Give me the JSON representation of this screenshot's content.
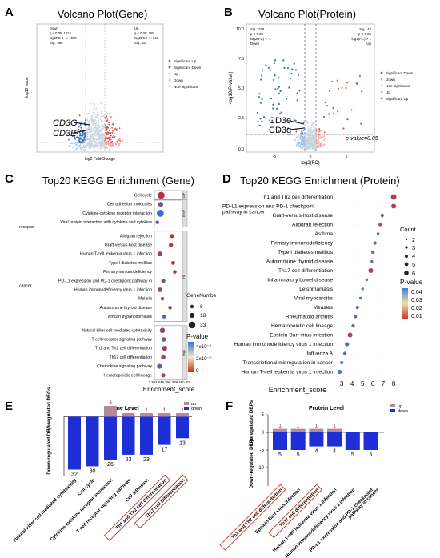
{
  "panels": {
    "a": {
      "letter": "A",
      "title": "Volcano Plot(Gene)",
      "ylabel": "-log10 value",
      "xlabel": "log2 FoldChange",
      "down_stats": [
        "Down",
        "q < 0.05: 1016",
        "log2FC < -1: 1086",
        "Sig.: 468"
      ],
      "up_stats": [
        "Up",
        "q < 0.05: 358",
        "log2FC > 1: 943",
        "Sig.: 52"
      ],
      "legend": [
        "Significant Up",
        "Significant Down",
        "Up",
        "Down",
        "Non-significant"
      ],
      "annot1": "CD3G",
      "annot2": "CD3E"
    },
    "b": {
      "letter": "B",
      "title": "Volcano Plot(Protein)",
      "ylabel": "-log10(P-value)",
      "xlabel": "log2(FC)",
      "yticks": [
        "10.0",
        "7.5",
        "5.0",
        "2.5",
        "0.0"
      ],
      "xticks": [
        "-5",
        "0",
        "5"
      ],
      "down_stats": [
        "Sig.: 108",
        "p < 0.05",
        "log2(FC) < -1",
        "Down"
      ],
      "up_stats": [
        "Sig.: 42",
        "p < 0.05",
        "log2(FC) > 1",
        "Up"
      ],
      "legend": [
        "Significant Down",
        "Down",
        "Non-significant",
        "Up",
        "Significant Up"
      ],
      "annot1": "CD3e",
      "annot2": "CD3g",
      "pline_label": "p-value=0.05"
    },
    "c": {
      "letter": "C",
      "title": "Top20 KEGG Enrichment (Gene)",
      "xlabel": "Enrichment_score",
      "xticks": "2.303.646.396.328.480.00",
      "legend_size_title": "GeneNumbe",
      "legend_sizes": [
        "8",
        "18",
        "33"
      ],
      "legend_color_title": "P-value",
      "legend_colors": [
        "4x10⁻⁶",
        "2x10⁻⁶",
        "0"
      ],
      "groups": [
        "CeP",
        "EnvIP",
        "HD",
        "OrgS"
      ],
      "terms": [
        "Cell cycle",
        "Cell adhesion molecules",
        "Cytokine-cytokine receptor interaction",
        "Viral protein interaction with cytokine and cytokine receptor",
        "Allograft rejection",
        "Graft-versus-host disease",
        "Human T-cell leukemia virus 1 infection",
        "Type I diabetes mellitus",
        "Primary immunodeficiency",
        "PD-L1 expression and PD-1 checkpoint pathway in cancer",
        "Human immunodeficiency virus 1 infection",
        "Malaria",
        "Autoimmune thyroid disease",
        "African trypanosomiasis",
        "Natural killer cell mediated cytotoxicity",
        "T cell receptor signaling pathway",
        "Th1 and Th2 cell differentiation",
        "Th17 cell differentiation",
        "Chemokine signaling pathway",
        "Hematopoietic cell lineage"
      ]
    },
    "d": {
      "letter": "D",
      "title": "Top20 KEGG Enrichment (Protein)",
      "xlabel": "Enrichment_score",
      "xticks": [
        "3",
        "4",
        "5",
        "6",
        "7",
        "8"
      ],
      "legend_size_title": "Count",
      "legend_sizes": [
        "2",
        "3",
        "4",
        "5",
        "6"
      ],
      "legend_color_title": "P-value",
      "legend_colors": [
        "0.04",
        "0.03",
        "0.02",
        "0.01"
      ],
      "terms": [
        "Th1 and Th2 cell differentiation",
        "PD-L1 expression and PD-1 checkpoint pathway in cancer",
        "Graft-versus-host disease",
        "Allograft rejection",
        "Asthma",
        "Primary immunodeficiency",
        "Type I diabetes mellitus",
        "Autoimmune thyroid disease",
        "Th17 cell differentiation",
        "Inflammatory bowel disease",
        "Leishmaniasis",
        "Viral myocarditis",
        "Measles",
        "Rheumatoid arthritis",
        "Hematopoietic cell lineage",
        "Epstein-Barr virus infection",
        "Human immunodeficiency virus 1 infection",
        "Influenza A",
        "Transcriptional misregulation in cancer",
        "Human T-cell leukemia virus 1 infection"
      ]
    },
    "e": {
      "letter": "E",
      "title": "Gene Level",
      "ylabel_up": "Up-regulated DEGs",
      "ylabel_down": "Down-regulated DEGs",
      "legend": [
        "up",
        "down"
      ],
      "categories": [
        "Natural killer cell mediated cytotoxicity",
        "Cell cycle",
        "Cytokine-cytokine receptor interaction",
        "T cell receptor signaling pathway",
        "Cell adhesion",
        "Th1 and Th2 cell differentiation",
        "Th17 cell Differentiation"
      ],
      "up_labels": [
        "",
        "",
        "3",
        "1",
        "1",
        "1",
        "1"
      ],
      "down_labels": [
        "32",
        "30",
        "26",
        "23",
        "23",
        "17",
        "13"
      ]
    },
    "f": {
      "letter": "F",
      "title": "Protein Level",
      "ylabel_up": "Up-regulated DEPs",
      "ylabel_down": "Down-regulated DEPs",
      "yticks": [
        "5",
        "0",
        "-5",
        "-10"
      ],
      "legend": [
        "up",
        "down"
      ],
      "categories": [
        "Th1 and Th2 cell differentiation",
        "Epstein-Barr virus infection",
        "Th17 cell differentiation",
        "Human T-cell leukemia virus 1 infection",
        "Human immunodeficiency virus 1 infection",
        "PD-L1 expression and PD-1 checkpoint pathway in cancer"
      ],
      "up_labels": [
        "1",
        "1",
        "1",
        "1",
        "",
        ""
      ],
      "down_labels": [
        "5",
        "5",
        "4",
        "4",
        "5",
        "5"
      ]
    }
  },
  "colors": {
    "sig_up": "#d9534f",
    "sig_down": "#3b6fb6",
    "up": "#f2a7a3",
    "down": "#9fc2e8",
    "ns": "#c9d3e0",
    "bar_up": "#b58a9a",
    "bar_down": "#1f2fd6",
    "highlight": "#c0392b"
  },
  "chart_data": [
    {
      "type": "scatter",
      "title": "Volcano Plot(Gene)",
      "xlabel": "log2 FoldChange",
      "ylabel": "-log10 value",
      "series": [
        {
          "name": "Significant Up",
          "count": 52
        },
        {
          "name": "Significant Down",
          "count": 468
        }
      ]
    },
    {
      "type": "scatter",
      "title": "Volcano Plot(Protein)",
      "xlabel": "log2(FC)",
      "ylabel": "-log10(P-value)",
      "ylim": [
        0,
        10.5
      ],
      "series": [
        {
          "name": "Significant Down",
          "count": 108
        },
        {
          "name": "Significant Up",
          "count": 42
        }
      ]
    },
    {
      "type": "scatter",
      "title": "Top20 KEGG Enrichment (Gene)",
      "xlabel": "Enrichment_score",
      "categories": [
        "Cell cycle",
        "Cell adhesion molecules",
        "Cytokine-cytokine receptor interaction",
        "Viral protein interaction with cytokine and cytokine receptor",
        "Allograft rejection",
        "Graft-versus-host disease",
        "Human T-cell leukemia virus 1 infection",
        "Type I diabetes mellitus",
        "Primary immunodeficiency",
        "PD-L1 expression and PD-1 checkpoint pathway in cancer",
        "Human immunodeficiency virus 1 infection",
        "Malaria",
        "Autoimmune thyroid disease",
        "African trypanosomiasis",
        "Natural killer cell mediated cytotoxicity",
        "T cell receptor signaling pathway",
        "Th1 and Th2 cell differentiation",
        "Th17 cell differentiation",
        "Chemokine signaling pathway",
        "Hematopoietic cell lineage"
      ],
      "values": [
        3.7,
        3.6,
        3.5,
        2.8,
        6.2,
        6.0,
        3.4,
        6.5,
        6.9,
        4.2,
        3.4,
        4.0,
        5.8,
        4.4,
        4.0,
        4.3,
        4.5,
        4.2,
        3.3,
        4.2
      ],
      "pvalue": [
        1e-06,
        3e-06,
        4.5e-06,
        3.2e-06,
        5e-07,
        6e-07,
        2.2e-06,
        4e-07,
        3e-07,
        3e-06,
        2.4e-06,
        3.2e-06,
        6e-07,
        3.5e-06,
        2.2e-06,
        3e-06,
        1.5e-06,
        1.8e-06,
        3.3e-06,
        2e-06
      ],
      "size": [
        33,
        18,
        33,
        8,
        12,
        12,
        18,
        10,
        8,
        12,
        15,
        8,
        8,
        8,
        20,
        14,
        18,
        14,
        18,
        12
      ]
    },
    {
      "type": "scatter",
      "title": "Top20 KEGG Enrichment (Protein)",
      "xlabel": "Enrichment_score",
      "xlim": [
        2.6,
        8.3
      ],
      "categories": [
        "Th1 and Th2 cell differentiation",
        "PD-L1 expression and PD-1 checkpoint pathway in cancer",
        "Graft-versus-host disease",
        "Allograft rejection",
        "Asthma",
        "Primary immunodeficiency",
        "Type I diabetes mellitus",
        "Autoimmune thyroid disease",
        "Th17 cell differentiation",
        "Inflammatory bowel disease",
        "Leishmaniasis",
        "Viral myocarditis",
        "Measles",
        "Rheumatoid arthritis",
        "Hematopoietic cell lineage",
        "Epstein-Barr virus infection",
        "Human immunodeficiency virus 1 infection",
        "Influenza A",
        "Transcriptional misregulation in cancer",
        "Human T-cell leukemia virus 1 infection"
      ],
      "values": [
        8.0,
        8.0,
        6.9,
        6.7,
        6.5,
        6.2,
        6.0,
        5.9,
        5.8,
        5.4,
        5.0,
        4.8,
        4.5,
        4.3,
        4.1,
        3.8,
        3.5,
        3.3,
        3.0,
        2.8
      ],
      "pvalue": [
        0.005,
        0.008,
        0.02,
        0.015,
        0.03,
        0.025,
        0.028,
        0.035,
        0.008,
        0.04,
        0.04,
        0.04,
        0.035,
        0.03,
        0.03,
        0.012,
        0.03,
        0.035,
        0.04,
        0.04
      ],
      "size": [
        6,
        5,
        3,
        3,
        2,
        3,
        3,
        2,
        5,
        2,
        2,
        2,
        3,
        3,
        3,
        5,
        4,
        3,
        3,
        4
      ]
    },
    {
      "type": "bar",
      "title": "Gene Level",
      "legend": [
        "up",
        "down"
      ],
      "categories": [
        "Natural killer cell mediated cytotoxicity",
        "Cell cycle",
        "Cytokine-cytokine receptor interaction",
        "T cell receptor signaling pathway",
        "Cell adhesion",
        "Th1 and Th2 cell differentiation",
        "Th17 cell Differentiation"
      ],
      "series": [
        {
          "name": "up",
          "values": [
            0,
            0,
            3,
            1,
            1,
            1,
            1
          ]
        },
        {
          "name": "down",
          "values": [
            -32,
            -30,
            -26,
            -23,
            -23,
            -17,
            -13
          ]
        }
      ]
    },
    {
      "type": "bar",
      "title": "Protein Level",
      "ylim": [
        -10,
        5
      ],
      "legend": [
        "up",
        "down"
      ],
      "categories": [
        "Th1 and Th2 cell differentiation",
        "Epstein-Barr virus infection",
        "Th17 cell differentiation",
        "Human T-cell leukemia virus 1 infection",
        "Human immunodeficiency virus 1 infection",
        "PD-L1 expression and PD-1 checkpoint pathway in cancer"
      ],
      "series": [
        {
          "name": "up",
          "values": [
            1,
            1,
            1,
            1,
            0,
            0
          ]
        },
        {
          "name": "down",
          "values": [
            -5,
            -5,
            -4,
            -4,
            -5,
            -5
          ]
        }
      ]
    }
  ]
}
